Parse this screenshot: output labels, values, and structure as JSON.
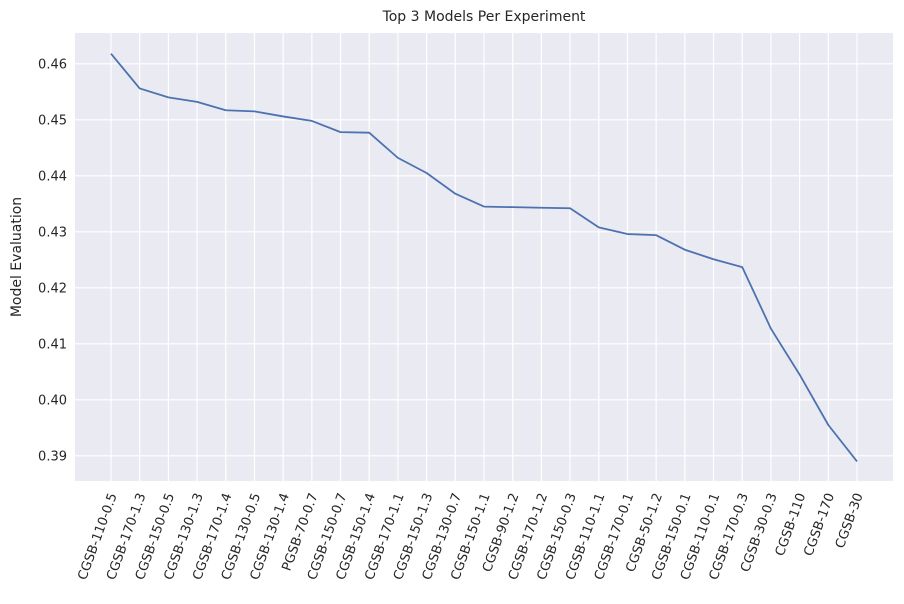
{
  "chart_data": {
    "type": "line",
    "title": "Top 3 Models Per Experiment",
    "xlabel": "",
    "ylabel": "Model Evaluation",
    "categories": [
      "CGSB-110-0.5",
      "CGSB-170-1.3",
      "CGSB-150-0.5",
      "CGSB-130-1.3",
      "CGSB-170-1.4",
      "CGSB-130-0.5",
      "CGSB-130-1.4",
      "PGSB-70-0.7",
      "CGSB-150-0.7",
      "CGSB-150-1.4",
      "CGSB-170-1.1",
      "CGSB-150-1.3",
      "CGSB-130-0.7",
      "CGSB-150-1.1",
      "CGSB-90-1.2",
      "CGSB-170-1.2",
      "CGSB-150-0.3",
      "CGSB-110-1.1",
      "CGSB-170-0.1",
      "CGSB-50-1.2",
      "CGSB-150-0.1",
      "CGSB-110-0.1",
      "CGSB-170-0.3",
      "CGSB-30-0.3",
      "CGSB-110",
      "CGSB-170",
      "CGSB-30"
    ],
    "series": [
      {
        "name": "",
        "color": "#4c72b0",
        "values": [
          0.4618,
          0.4556,
          0.454,
          0.4532,
          0.4517,
          0.4515,
          0.4506,
          0.4498,
          0.4478,
          0.4477,
          0.4432,
          0.4405,
          0.4368,
          0.4345,
          0.4344,
          0.4343,
          0.4342,
          0.4308,
          0.4296,
          0.4294,
          0.4268,
          0.4251,
          0.4237,
          0.4127,
          0.4045,
          0.3955,
          0.389
        ]
      }
    ],
    "ylim": [
      0.3855,
      0.4655
    ],
    "yticks": [
      0.39,
      0.4,
      0.41,
      0.42,
      0.43,
      0.44,
      0.45,
      0.46
    ],
    "ytick_labels": [
      "0.39",
      "0.40",
      "0.41",
      "0.42",
      "0.43",
      "0.44",
      "0.45",
      "0.46"
    ],
    "grid": true,
    "legend": "none",
    "colors": {
      "background": "#eaeaf2",
      "grid": "#ffffff",
      "text": "#262626"
    }
  }
}
